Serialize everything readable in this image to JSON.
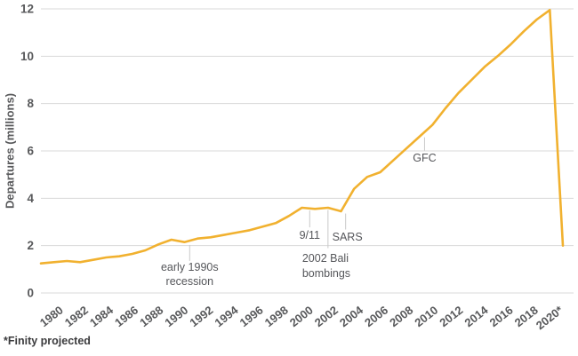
{
  "chart_data": {
    "type": "line",
    "title": "",
    "ylabel": "Departures (millions)",
    "xlabel": "",
    "footnote": "*Finity projected",
    "ylim": [
      0,
      12
    ],
    "y_ticks": [
      0,
      2,
      4,
      6,
      8,
      10,
      12
    ],
    "x_range": [
      1980,
      2020
    ],
    "x_tick_labels": [
      "1980",
      "1982",
      "1984",
      "1986",
      "1988",
      "1990",
      "1992",
      "1994",
      "1996",
      "1998",
      "2000",
      "2002",
      "2004",
      "2006",
      "2008",
      "2010",
      "2012",
      "2014",
      "2016",
      "2018",
      "2020*"
    ],
    "grid": "horizontal-only",
    "legend": "none",
    "series": [
      {
        "name": "Departures (millions)",
        "x_start_year": 1980,
        "x_step": 1,
        "values": [
          1.25,
          1.3,
          1.35,
          1.3,
          1.4,
          1.5,
          1.55,
          1.65,
          1.8,
          2.05,
          2.25,
          2.15,
          2.3,
          2.35,
          2.45,
          2.55,
          2.65,
          2.8,
          2.95,
          3.25,
          3.6,
          3.55,
          3.6,
          3.45,
          4.4,
          4.9,
          5.1,
          5.6,
          6.1,
          6.6,
          7.1,
          7.8,
          8.45,
          9.0,
          9.55,
          10.0,
          10.5,
          11.05,
          11.55,
          11.95,
          2.0
        ]
      }
    ],
    "annotations": [
      {
        "id": "early-1990s-recession",
        "lines": [
          "early 1990s",
          "recession"
        ],
        "label": "early 1990s recession",
        "year": 1991.4,
        "value": 2.14
      },
      {
        "id": "nine-eleven",
        "lines": [
          "9/11"
        ],
        "label": "9/11",
        "year": 2000.6,
        "value": 3.56
      },
      {
        "id": "bali-bombings",
        "lines": [
          "2002 Bali",
          "bombings"
        ],
        "label": "2002 Bali bombings",
        "year": 2002.0,
        "value": 3.58
      },
      {
        "id": "sars",
        "lines": [
          "SARS"
        ],
        "label": "SARS",
        "year": 2003.35,
        "value": 3.43
      },
      {
        "id": "gfc",
        "lines": [
          "GFC"
        ],
        "label": "GFC",
        "year": 2009.4,
        "value": 6.65
      }
    ],
    "colors": {
      "line": "#F1B12F",
      "gridline": "#D8D8D8",
      "annotation_line": "#C9C9C9",
      "axis_text": "#58595B",
      "annotation_text": "#55565A",
      "footnote_text": "#3B3B3D",
      "background": "#FFFFFF"
    }
  }
}
